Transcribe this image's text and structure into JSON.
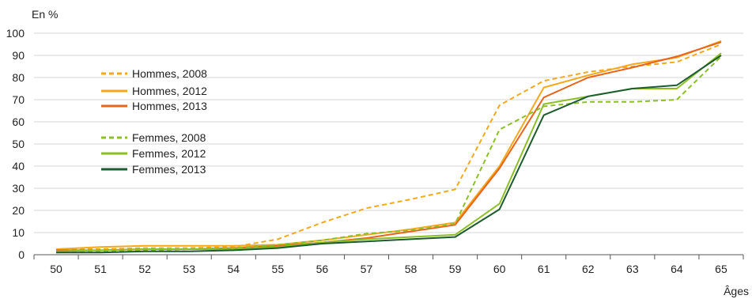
{
  "chart_data": {
    "type": "line",
    "ylabel": "En %",
    "xlabel": "Âges",
    "x": [
      50,
      51,
      52,
      53,
      54,
      55,
      56,
      57,
      58,
      59,
      60,
      61,
      62,
      63,
      64,
      65
    ],
    "ylim": [
      0,
      100
    ],
    "yticks": [
      0,
      10,
      20,
      30,
      40,
      50,
      60,
      70,
      80,
      90,
      100
    ],
    "grid": "horizontal",
    "legend_position": "top-left",
    "series": [
      {
        "name": "Hommes, 2008",
        "color": "#f5a81c",
        "dash": "dashed",
        "values": [
          2.5,
          2.5,
          3,
          3,
          3.5,
          7,
          14.5,
          21,
          25,
          29.5,
          67.5,
          78.5,
          82.5,
          85,
          87,
          95
        ]
      },
      {
        "name": "Hommes, 2012",
        "color": "#f5a81c",
        "dash": "solid",
        "values": [
          2.5,
          3.5,
          4,
          4,
          4,
          4.5,
          6.5,
          9,
          11.5,
          14.5,
          40,
          75.5,
          81,
          86,
          89,
          96.5
        ]
      },
      {
        "name": "Hommes, 2013",
        "color": "#e8641b",
        "dash": "solid",
        "values": [
          2,
          2,
          2.5,
          2.5,
          3,
          4,
          5.5,
          7.5,
          10.5,
          13.5,
          39,
          71,
          80,
          84.5,
          89.5,
          96
        ]
      },
      {
        "name": "Femmes, 2008",
        "color": "#8cbf26",
        "dash": "dashed",
        "values": [
          1,
          1.5,
          2,
          2.5,
          3,
          4.5,
          6.5,
          9.5,
          11,
          14,
          56.5,
          67,
          69,
          69,
          70,
          89.5
        ]
      },
      {
        "name": "Femmes, 2012",
        "color": "#8cbf26",
        "dash": "solid",
        "values": [
          1.5,
          2,
          2.5,
          2.5,
          2.5,
          3.5,
          5.5,
          7,
          8,
          9,
          23,
          68,
          71.5,
          75,
          75,
          91
        ]
      },
      {
        "name": "Femmes, 2013",
        "color": "#1d5c2e",
        "dash": "solid",
        "values": [
          1,
          1,
          1.5,
          1.5,
          2,
          3,
          5,
          6,
          7,
          8,
          20.5,
          63,
          71.5,
          75,
          76.5,
          90
        ]
      }
    ]
  }
}
